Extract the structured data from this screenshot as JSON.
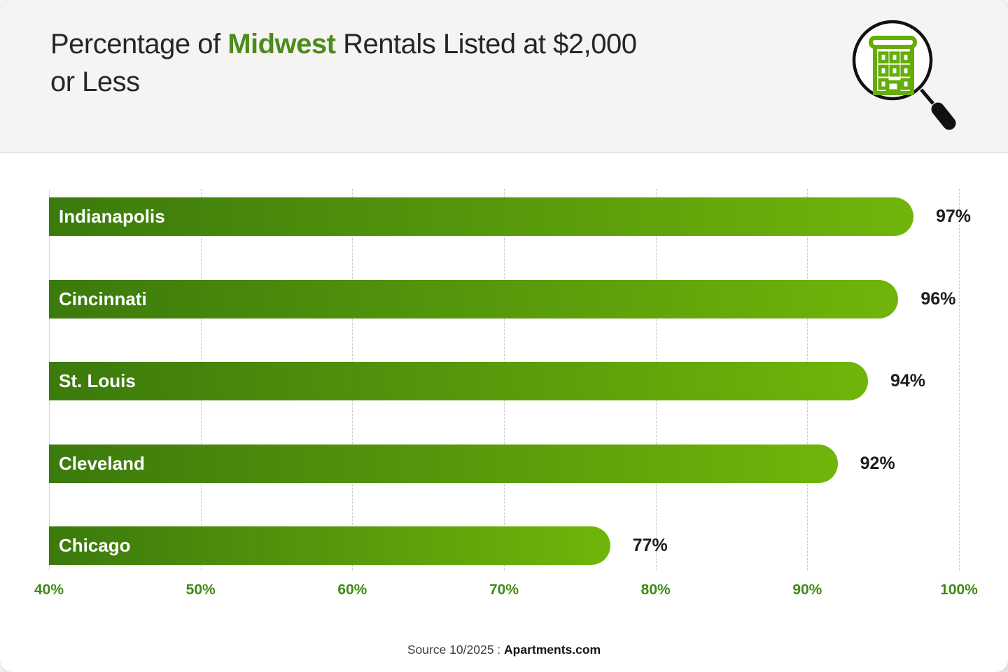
{
  "header": {
    "title_prefix": "Percentage of ",
    "title_highlight": "Midwest",
    "title_suffix": " Rentals Listed at $2,000 or Less",
    "icon": "magnifying-glass-building-icon"
  },
  "colors": {
    "accent_green": "#4e8a1d",
    "bar_gradient_start": "#3b7a0c",
    "bar_gradient_end": "#70b50a",
    "axis_label_green": "#3f8a14",
    "icon_building_green": "#65ad08",
    "header_bg": "#f5f4f2",
    "title_text": "#262626",
    "value_text": "#1c1c1c"
  },
  "chart_data": {
    "type": "bar",
    "orientation": "horizontal",
    "title": "Percentage of Midwest Rentals Listed at $2,000 or Less",
    "categories": [
      "Indianapolis",
      "Cincinnati",
      "St. Louis",
      "Cleveland",
      "Chicago"
    ],
    "values": [
      97,
      96,
      94,
      92,
      77
    ],
    "value_labels": [
      "97%",
      "96%",
      "94%",
      "92%",
      "77%"
    ],
    "xlabel": "",
    "ylabel": "",
    "xlim": [
      40,
      100
    ],
    "x_ticks": [
      {
        "value": 40,
        "label": "40%"
      },
      {
        "value": 50,
        "label": "50%"
      },
      {
        "value": 60,
        "label": "60%"
      },
      {
        "value": 70,
        "label": "70%"
      },
      {
        "value": 80,
        "label": "80%"
      },
      {
        "value": 90,
        "label": "90%"
      },
      {
        "value": 100,
        "label": "100%"
      }
    ],
    "grid": "vertical-dashed",
    "legend": "none",
    "bar_gradient": [
      "#3b7a0c",
      "#70b50a"
    ]
  },
  "footer": {
    "source_prefix": "Source 10/2025 : ",
    "source_brand": "Apartments.com"
  }
}
